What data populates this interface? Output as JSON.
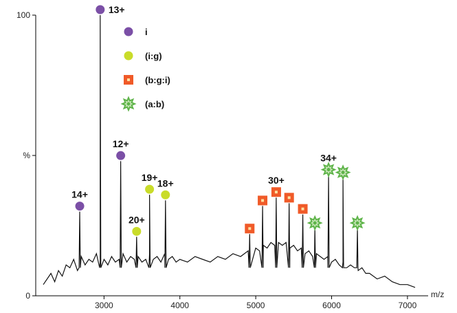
{
  "chart_data": {
    "type": "line",
    "xlabel": "m/z",
    "ylabel": "%",
    "xlim": [
      2100,
      7200
    ],
    "ylim": [
      0,
      100
    ],
    "x_ticks": [
      3000,
      4000,
      5000,
      6000,
      7000
    ],
    "y_ticks": [
      {
        "value": 0,
        "label": "0"
      },
      {
        "value": 50,
        "label": "%"
      },
      {
        "value": 100,
        "label": "100"
      }
    ],
    "legend": [
      {
        "label": "i",
        "marker": "circle",
        "color": "#7b4fa6"
      },
      {
        "label": "(i:g)",
        "marker": "circle",
        "color": "#c9dc2a"
      },
      {
        "label": "(b:g:i)",
        "marker": "square",
        "color": "#f05a28"
      },
      {
        "label": "(a:b)",
        "marker": "star",
        "color": "#5fb44a"
      }
    ],
    "spectrum": {
      "x": [
        2200,
        2250,
        2300,
        2350,
        2400,
        2450,
        2500,
        2550,
        2600,
        2650,
        2700,
        2750,
        2800,
        2850,
        2900,
        2950,
        3000,
        3050,
        3100,
        3150,
        3200,
        3250,
        3300,
        3350,
        3400,
        3450,
        3500,
        3550,
        3600,
        3650,
        3700,
        3750,
        3800,
        3850,
        3900,
        3950,
        4000,
        4100,
        4200,
        4300,
        4400,
        4500,
        4600,
        4700,
        4800,
        4900,
        5000,
        5050,
        5100,
        5150,
        5200,
        5250,
        5300,
        5350,
        5400,
        5450,
        5500,
        5550,
        5600,
        5650,
        5700,
        5750,
        5800,
        5850,
        5900,
        5950,
        6000,
        6050,
        6100,
        6150,
        6200,
        6250,
        6300,
        6350,
        6400,
        6450,
        6500,
        6600,
        6700,
        6800,
        6900,
        7000,
        7100
      ],
      "y": [
        4,
        6,
        8,
        5,
        9,
        7,
        11,
        10,
        13,
        9,
        14,
        11,
        13,
        12,
        15,
        12,
        13,
        11,
        14,
        12,
        13,
        15,
        12,
        14,
        13,
        14,
        12,
        13,
        15,
        13,
        14,
        12,
        15,
        13,
        14,
        12,
        13,
        12,
        14,
        13,
        12,
        14,
        13,
        15,
        14,
        16,
        17,
        16,
        18,
        17,
        19,
        18,
        19,
        18,
        19,
        17,
        18,
        16,
        17,
        15,
        16,
        14,
        15,
        14,
        13,
        14,
        12,
        13,
        11,
        12,
        10,
        11,
        10,
        9,
        10,
        8,
        8,
        6,
        7,
        5,
        4,
        4,
        3
      ]
    },
    "peaks": [
      {
        "x": 2680,
        "y": 30,
        "label": "14+",
        "series": "i"
      },
      {
        "x": 2950,
        "y": 100,
        "label": "13+",
        "series": "i"
      },
      {
        "x": 3220,
        "y": 48,
        "label": "12+",
        "series": "i"
      },
      {
        "x": 3430,
        "y": 21,
        "label": "20+",
        "series": "(i:g)"
      },
      {
        "x": 3600,
        "y": 36,
        "label": "19+",
        "series": "(i:g)"
      },
      {
        "x": 3810,
        "y": 34,
        "label": "18+",
        "series": "(i:g)"
      },
      {
        "x": 4920,
        "y": 22,
        "label": "",
        "series": "(b:g:i)"
      },
      {
        "x": 5090,
        "y": 32,
        "label": "",
        "series": "(b:g:i)"
      },
      {
        "x": 5270,
        "y": 35,
        "label": "30+",
        "series": "(b:g:i)"
      },
      {
        "x": 5440,
        "y": 33,
        "label": "",
        "series": "(b:g:i)"
      },
      {
        "x": 5620,
        "y": 29,
        "label": "",
        "series": "(b:g:i)"
      },
      {
        "x": 5780,
        "y": 24,
        "label": "",
        "series": "(a:b)"
      },
      {
        "x": 5960,
        "y": 43,
        "label": "34+",
        "series": "(a:b)"
      },
      {
        "x": 6150,
        "y": 42,
        "label": "",
        "series": "(a:b)"
      },
      {
        "x": 6340,
        "y": 24,
        "label": "",
        "series": "(a:b)"
      }
    ]
  }
}
